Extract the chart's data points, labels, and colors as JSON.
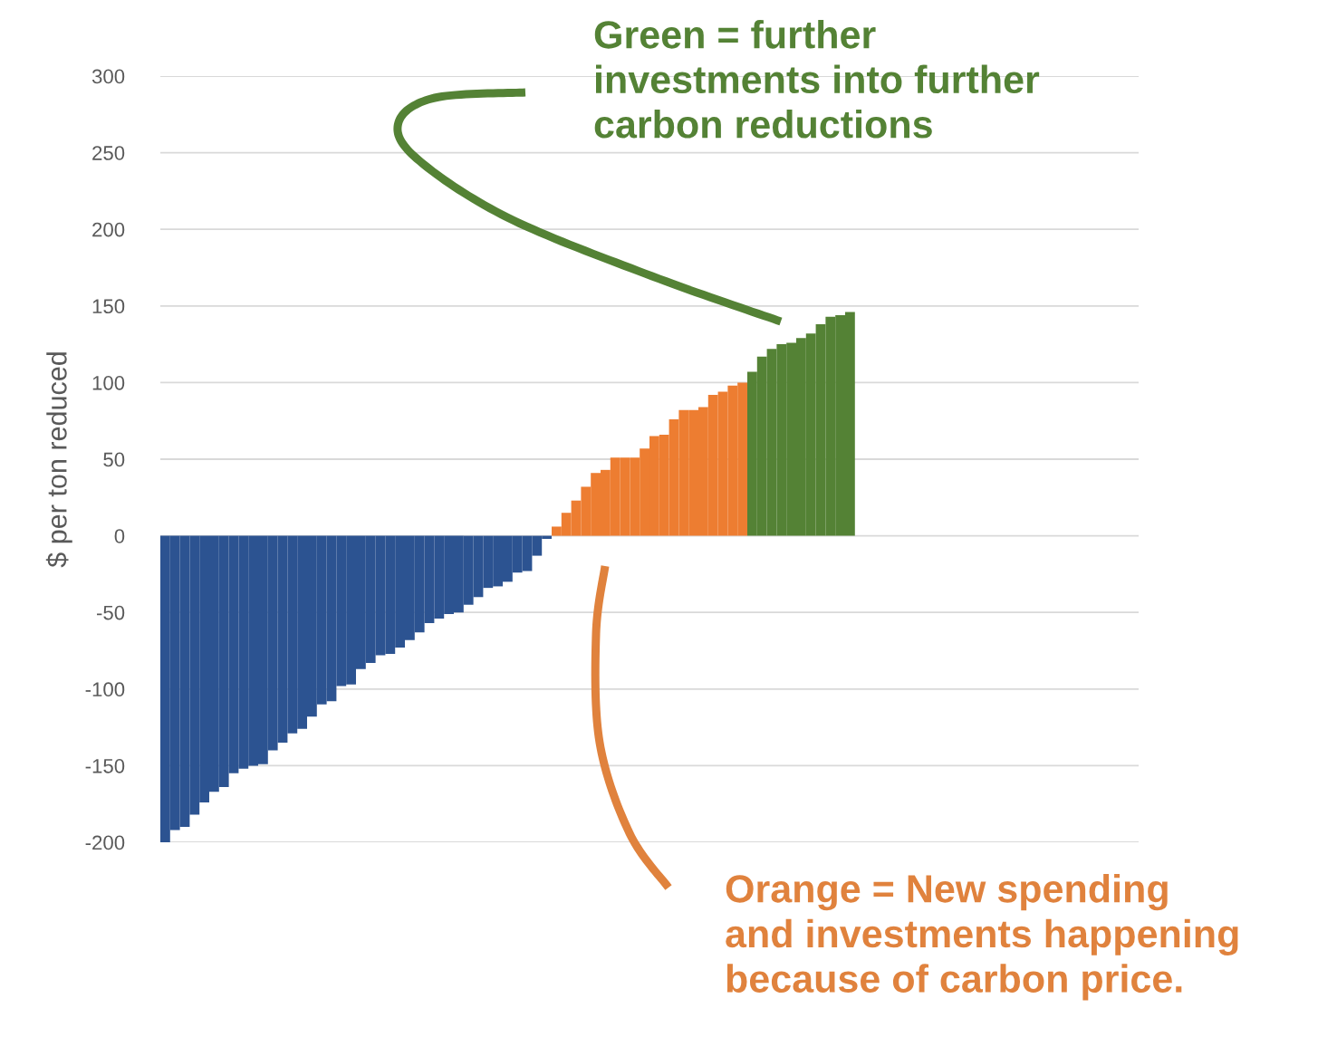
{
  "chart_data": {
    "type": "bar",
    "ylabel": "$ per ton reduced",
    "categories": [
      null,
      null,
      null,
      null,
      null,
      null,
      null,
      null,
      null,
      null,
      null,
      null,
      null,
      null,
      null,
      null,
      null,
      null,
      null,
      null,
      null,
      null,
      null,
      null,
      null,
      null,
      null,
      null,
      null,
      null,
      null,
      null,
      null,
      null,
      null,
      null,
      null,
      null,
      null,
      null,
      null,
      null,
      null,
      null,
      null,
      null,
      null,
      null,
      null,
      null,
      null,
      null,
      null,
      null,
      null,
      null,
      null,
      null,
      null,
      null,
      null,
      null,
      null,
      null,
      null,
      null,
      null,
      null,
      null,
      null,
      null,
      null,
      null,
      null,
      null,
      null,
      null,
      null,
      null,
      null,
      null,
      null,
      null,
      null,
      null,
      null,
      null,
      null,
      null,
      null,
      null,
      null,
      null,
      null,
      null,
      null,
      null,
      null,
      null,
      null
    ],
    "series": [
      {
        "color": "#2c5391",
        "values": [
          -200,
          -192,
          -190,
          -182,
          -174,
          -167,
          -164,
          -155,
          -152,
          -150,
          -149,
          -140,
          -135,
          -129,
          -126,
          -118,
          -110,
          -108,
          -98,
          -97,
          -87,
          -83,
          -78,
          -77,
          -73,
          -68,
          -63,
          -57,
          -54,
          -51,
          -50,
          -45,
          -40,
          -34,
          -33,
          -30,
          -24,
          -23,
          -13,
          -2,
          null,
          null,
          null,
          null,
          null,
          null,
          null,
          null,
          null,
          null,
          null,
          null,
          null,
          null,
          null,
          null,
          null,
          null,
          null,
          null,
          null,
          null,
          null,
          null,
          null,
          null,
          null,
          null,
          null,
          null,
          null,
          null,
          null,
          null,
          null,
          null,
          null,
          null,
          null,
          null,
          null,
          null,
          null,
          null,
          null,
          null,
          null,
          null,
          null,
          null,
          null,
          null,
          null,
          null,
          null,
          null,
          null,
          null,
          null,
          null
        ]
      },
      {
        "color": "#ed7d31",
        "values": [
          null,
          null,
          null,
          null,
          null,
          null,
          null,
          null,
          null,
          null,
          null,
          null,
          null,
          null,
          null,
          null,
          null,
          null,
          null,
          null,
          null,
          null,
          null,
          null,
          null,
          null,
          null,
          null,
          null,
          null,
          null,
          null,
          null,
          null,
          null,
          null,
          null,
          null,
          null,
          null,
          6,
          15,
          23,
          32,
          41,
          43,
          51,
          51,
          51,
          57,
          65,
          66,
          76,
          82,
          82,
          84,
          92,
          94,
          98,
          100,
          null,
          null,
          null,
          null,
          null,
          null,
          null,
          null,
          null,
          null,
          null,
          null,
          null,
          null,
          null,
          null,
          null,
          null,
          null,
          null,
          null,
          null,
          null,
          null,
          null,
          null,
          null,
          null,
          null,
          null,
          null,
          null,
          null,
          null,
          null,
          null,
          null,
          null,
          null,
          null
        ]
      },
      {
        "color": "#548235",
        "values": [
          null,
          null,
          null,
          null,
          null,
          null,
          null,
          null,
          null,
          null,
          null,
          null,
          null,
          null,
          null,
          null,
          null,
          null,
          null,
          null,
          null,
          null,
          null,
          null,
          null,
          null,
          null,
          null,
          null,
          null,
          null,
          null,
          null,
          null,
          null,
          null,
          null,
          null,
          null,
          null,
          null,
          null,
          null,
          null,
          null,
          null,
          null,
          null,
          null,
          null,
          null,
          null,
          null,
          null,
          null,
          null,
          null,
          null,
          null,
          null,
          107,
          117,
          122,
          125,
          126,
          129,
          132,
          138,
          143,
          144,
          146,
          null,
          null,
          null,
          null,
          null,
          null,
          null,
          null,
          null,
          null,
          null,
          null,
          null,
          null,
          null,
          null,
          null,
          null,
          null,
          null,
          null,
          null,
          null,
          null,
          null,
          null,
          null,
          null,
          null
        ]
      }
    ],
    "ylim": [
      -200,
      300
    ],
    "yticks": [
      -200,
      -150,
      -100,
      -50,
      0,
      50,
      100,
      150,
      200,
      250,
      300
    ],
    "grid": "y",
    "annotations": [
      "Green = further\ninvestments into further\ncarbon reductions",
      "Orange = New spending\nand investments happening\nbecause of carbon price."
    ]
  }
}
